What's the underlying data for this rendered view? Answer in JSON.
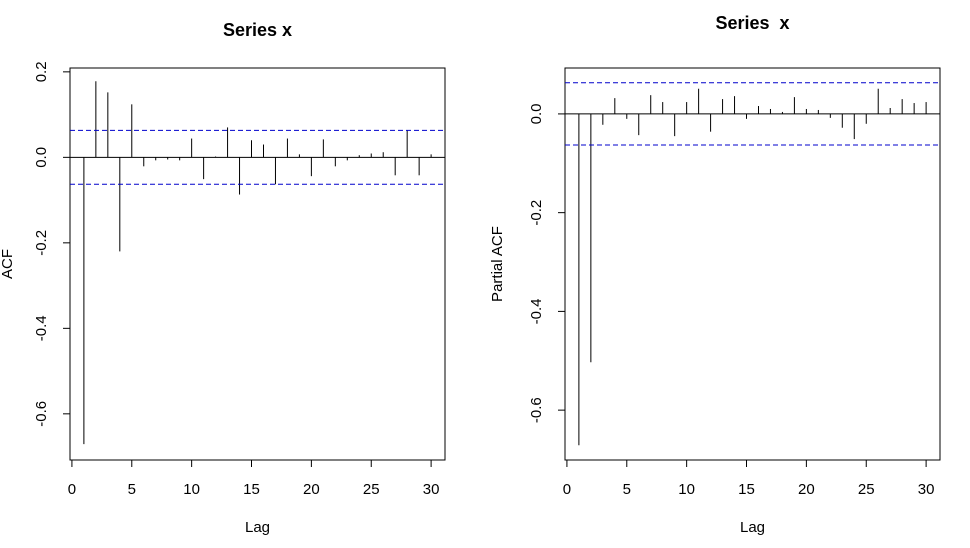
{
  "chart_data": [
    {
      "type": "spike",
      "title": "Series x",
      "x_label": "Lag",
      "y_label": "ACF",
      "x": [
        1,
        2,
        3,
        4,
        5,
        6,
        7,
        8,
        9,
        10,
        11,
        12,
        13,
        14,
        15,
        16,
        17,
        18,
        19,
        20,
        21,
        22,
        23,
        24,
        25,
        26,
        27,
        28,
        29,
        30
      ],
      "values": [
        -0.671,
        0.178,
        0.152,
        -0.22,
        0.124,
        -0.021,
        -0.007,
        -0.005,
        -0.007,
        0.044,
        -0.051,
        0.002,
        0.07,
        -0.087,
        0.04,
        0.03,
        -0.063,
        0.044,
        0.007,
        -0.044,
        0.042,
        -0.021,
        -0.007,
        0.005,
        0.009,
        0.012,
        -0.042,
        0.063,
        -0.042,
        0.007
      ],
      "color": "#000000",
      "ci": 0.063,
      "ci_color": "#0000cc",
      "xlim": [
        -0.16,
        31.16
      ],
      "xticks": [
        0,
        5,
        10,
        15,
        20,
        25,
        30
      ],
      "ylim": [
        -0.708,
        0.209
      ],
      "yticks": [
        0.2,
        {
          "value": 0,
          "label": "0.0"
        },
        -0.2,
        -0.4,
        -0.6
      ]
    },
    {
      "type": "spike",
      "title": "Series  x",
      "x_label": "Lag",
      "y_label": "Partial ACF",
      "x": [
        1,
        2,
        3,
        4,
        5,
        6,
        7,
        8,
        9,
        10,
        11,
        12,
        13,
        14,
        15,
        16,
        17,
        18,
        19,
        20,
        21,
        22,
        23,
        24,
        25,
        26,
        27,
        28,
        29,
        30
      ],
      "values": [
        -0.671,
        -0.503,
        -0.022,
        0.032,
        -0.01,
        -0.043,
        0.038,
        0.024,
        -0.045,
        0.024,
        0.051,
        -0.036,
        0.03,
        0.036,
        -0.01,
        0.016,
        0.01,
        0.004,
        0.034,
        0.01,
        0.008,
        -0.008,
        -0.028,
        -0.051,
        -0.02,
        0.051,
        0.012,
        0.03,
        0.022,
        0.024
      ],
      "color": "#000000",
      "ci": 0.063,
      "ci_color": "#0000cc",
      "xlim": [
        -0.16,
        31.16
      ],
      "xticks": [
        0,
        5,
        10,
        15,
        20,
        25,
        30
      ],
      "ylim": [
        -0.701,
        0.093
      ],
      "yticks": [
        {
          "value": 0,
          "label": "0.0"
        },
        -0.2,
        -0.4,
        -0.6
      ]
    }
  ]
}
